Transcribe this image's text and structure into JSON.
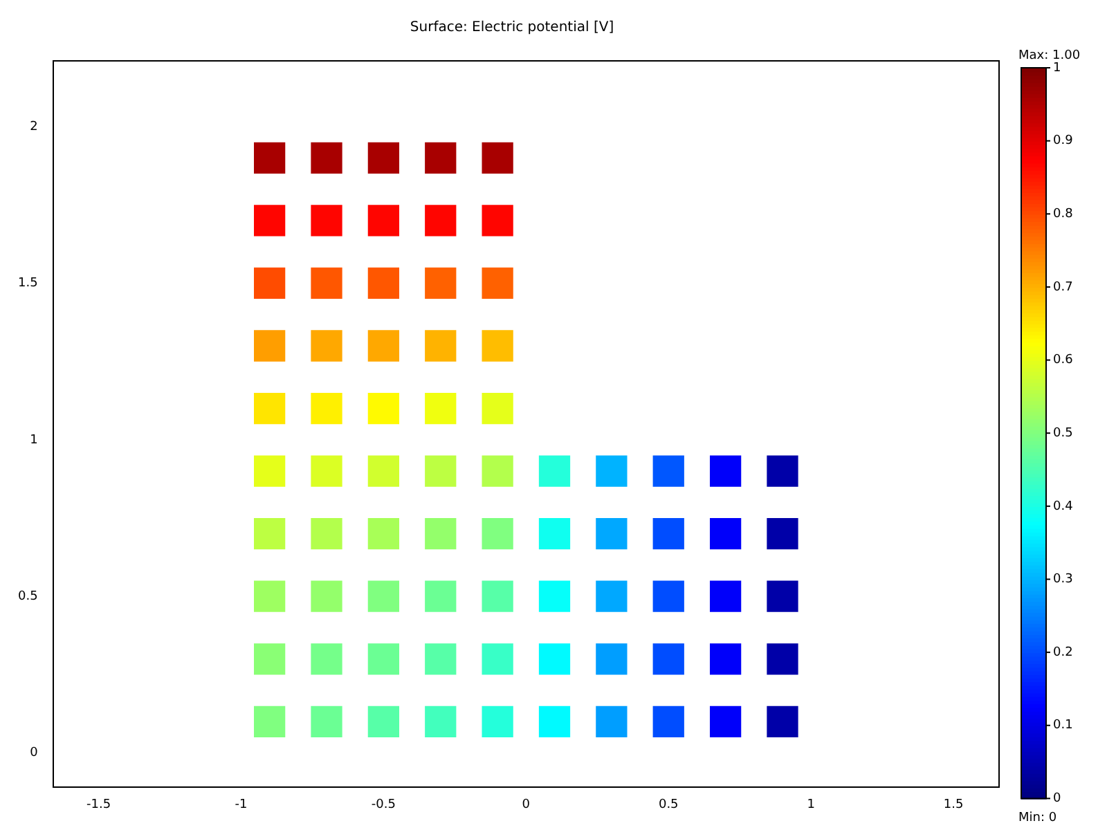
{
  "chart_data": {
    "type": "scatter",
    "title": "Surface: Electric potential [V]",
    "annotations": [
      "Max: 1.00",
      "Min: 0"
    ],
    "x": [
      -0.9,
      -0.9,
      -0.9,
      -0.9,
      -0.9,
      -0.9,
      -0.9,
      -0.9,
      -0.9,
      -0.9,
      -0.7,
      -0.7,
      -0.7,
      -0.7,
      -0.7,
      -0.7,
      -0.7,
      -0.7,
      -0.7,
      -0.7,
      -0.5,
      -0.5,
      -0.5,
      -0.5,
      -0.5,
      -0.5,
      -0.5,
      -0.5,
      -0.5,
      -0.5,
      -0.3,
      -0.3,
      -0.3,
      -0.3,
      -0.3,
      -0.3,
      -0.3,
      -0.3,
      -0.3,
      -0.3,
      -0.1,
      -0.1,
      -0.1,
      -0.1,
      -0.1,
      -0.1,
      -0.1,
      -0.1,
      -0.1,
      -0.1,
      0.1,
      0.1,
      0.1,
      0.1,
      0.1,
      0.3,
      0.3,
      0.3,
      0.3,
      0.3,
      0.5,
      0.5,
      0.5,
      0.5,
      0.5,
      0.7,
      0.7,
      0.7,
      0.7,
      0.7,
      0.9,
      0.9,
      0.9,
      0.9,
      0.9
    ],
    "values": [
      0.1,
      0.3,
      0.5,
      0.7,
      0.9,
      1.1,
      1.3,
      1.5,
      1.7,
      1.9,
      0.1,
      0.3,
      0.5,
      0.7,
      0.9,
      1.1,
      1.3,
      1.5,
      1.7,
      1.9,
      0.1,
      0.3,
      0.5,
      0.7,
      0.9,
      1.1,
      1.3,
      1.5,
      1.7,
      1.9,
      0.1,
      0.3,
      0.5,
      0.7,
      0.9,
      1.1,
      1.3,
      1.5,
      1.7,
      1.9,
      0.1,
      0.3,
      0.5,
      0.7,
      0.9,
      1.1,
      1.3,
      1.5,
      1.7,
      1.9,
      0.1,
      0.3,
      0.5,
      0.7,
      0.9,
      0.1,
      0.3,
      0.5,
      0.7,
      0.9,
      0.1,
      0.3,
      0.5,
      0.7,
      0.9,
      0.1,
      0.3,
      0.5,
      0.7,
      0.9,
      0.1,
      0.3,
      0.5,
      0.7,
      0.9
    ],
    "cvalues": [
      0.5,
      0.51,
      0.53,
      0.56,
      0.6,
      0.65,
      0.72,
      0.8,
      0.87,
      0.96,
      0.48,
      0.49,
      0.52,
      0.55,
      0.59,
      0.64,
      0.71,
      0.79,
      0.87,
      0.96,
      0.46,
      0.48,
      0.5,
      0.54,
      0.58,
      0.63,
      0.71,
      0.79,
      0.87,
      0.96,
      0.44,
      0.46,
      0.48,
      0.52,
      0.56,
      0.61,
      0.7,
      0.78,
      0.87,
      0.96,
      0.41,
      0.43,
      0.46,
      0.5,
      0.55,
      0.6,
      0.69,
      0.78,
      0.87,
      0.96,
      0.37,
      0.37,
      0.38,
      0.39,
      0.41,
      0.28,
      0.28,
      0.29,
      0.29,
      0.3,
      0.2,
      0.2,
      0.2,
      0.2,
      0.21,
      0.12,
      0.12,
      0.12,
      0.12,
      0.12,
      0.04,
      0.04,
      0.04,
      0.04,
      0.04
    ],
    "clim": [
      0,
      1
    ],
    "cticks": [
      0,
      0.1,
      0.2,
      0.3,
      0.4,
      0.5,
      0.6,
      0.7,
      0.8,
      0.9,
      1
    ],
    "xlim": [
      -1.66,
      1.66
    ],
    "xticks": [
      -1.5,
      -1,
      -0.5,
      0,
      0.5,
      1,
      1.5
    ],
    "ylim": [
      -0.11,
      2.21
    ],
    "yticks": [
      0,
      0.5,
      1,
      1.5,
      2
    ],
    "marker": "square"
  }
}
